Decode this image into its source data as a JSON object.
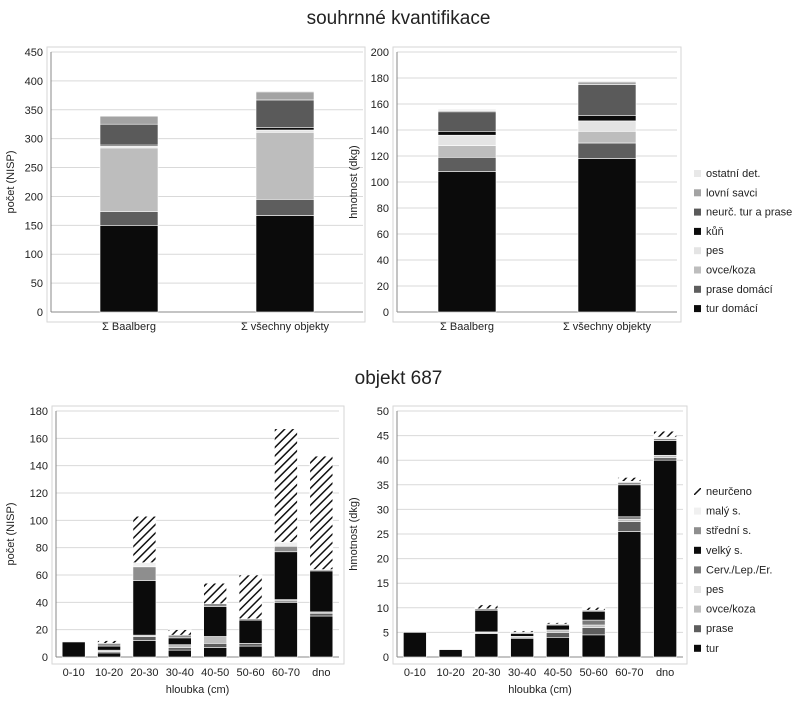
{
  "section_titles": [
    "souhrnné kvantifikace",
    "objekt 687"
  ],
  "fills": {
    "tur": "#0b0b0b",
    "prase": "#5e5e5e",
    "ovce_koza": "#bdbdbd",
    "pes": "#e4e4e4",
    "kun": "#0b0b0b",
    "neurc_tur_prase": "#5a5a5a",
    "lovni": "#a3a3a3",
    "ostatni": "#e8e8e8",
    "cerv": "#7a7a7a",
    "velky": "#0b0b0b",
    "stredni": "#8e8e8e",
    "maly": "#f0f0f0",
    "neurceno": "hatch"
  },
  "chart_data": [
    {
      "type": "bar",
      "stacked": true,
      "title": "",
      "xlabel": "",
      "ylabel": "počet (NISP)",
      "ylim": [
        0,
        450
      ],
      "yticks": [
        0,
        50,
        100,
        150,
        200,
        250,
        300,
        350,
        400,
        450
      ],
      "categories": [
        "Σ Baalberg",
        "Σ všechny objekty"
      ],
      "series": [
        {
          "name": "tur domácí",
          "key": "tur",
          "values": [
            150,
            167
          ]
        },
        {
          "name": "prase domácí",
          "key": "prase",
          "values": [
            24,
            28
          ]
        },
        {
          "name": "ovce/koza",
          "key": "ovce_koza",
          "values": [
            110,
            116
          ]
        },
        {
          "name": "pes",
          "key": "pes",
          "values": [
            3,
            4
          ]
        },
        {
          "name": "kůň",
          "key": "kun",
          "values": [
            2,
            4
          ]
        },
        {
          "name": "neurč. tur a prase",
          "key": "neurc_tur_prase",
          "values": [
            36,
            48
          ]
        },
        {
          "name": "lovní savci",
          "key": "lovni",
          "values": [
            14,
            14
          ]
        },
        {
          "name": "ostatní det.",
          "key": "ostatni",
          "values": [
            1,
            2
          ]
        }
      ]
    },
    {
      "type": "bar",
      "stacked": true,
      "title": "",
      "xlabel": "",
      "ylabel": "hmotnost  (dkg)",
      "ylim": [
        0,
        200
      ],
      "yticks": [
        0,
        20,
        40,
        60,
        80,
        100,
        120,
        140,
        160,
        180,
        200
      ],
      "categories": [
        "Σ Baalberg",
        "Σ všechny objekty"
      ],
      "series": [
        {
          "name": "tur domácí",
          "key": "tur",
          "values": [
            108,
            118
          ]
        },
        {
          "name": "prase domácí",
          "key": "prase",
          "values": [
            11,
            12
          ]
        },
        {
          "name": "ovce/koza",
          "key": "ovce_koza",
          "values": [
            9,
            9
          ]
        },
        {
          "name": "pes",
          "key": "pes",
          "values": [
            8,
            8
          ]
        },
        {
          "name": "kůň",
          "key": "kun",
          "values": [
            3,
            4
          ]
        },
        {
          "name": "neurč. tur a prase",
          "key": "neurc_tur_prase",
          "values": [
            15,
            24
          ]
        },
        {
          "name": "lovní savci",
          "key": "lovni",
          "values": [
            1,
            2
          ]
        },
        {
          "name": "ostatní det.",
          "key": "ostatni",
          "values": [
            1,
            1
          ]
        }
      ],
      "legend": [
        "ostatní det.",
        "lovní savci",
        "neurč. tur a prase",
        "kůň",
        "pes",
        "ovce/koza",
        "prase domácí",
        "tur domácí"
      ]
    },
    {
      "type": "bar",
      "stacked": true,
      "title": "",
      "xlabel": "hloubka  (cm)",
      "ylabel": "počet (NISP)",
      "ylim": [
        0,
        180
      ],
      "yticks": [
        0,
        20,
        40,
        60,
        80,
        100,
        120,
        140,
        160,
        180
      ],
      "categories": [
        "0-10",
        "10-20",
        "20-30",
        "30-40",
        "40-50",
        "50-60",
        "60-70",
        "dno"
      ],
      "series": [
        {
          "name": "tur",
          "key": "tur",
          "values": [
            11,
            3,
            12,
            5,
            7,
            8,
            40,
            30
          ]
        },
        {
          "name": "prase",
          "key": "prase",
          "values": [
            0,
            1,
            3,
            2,
            3,
            2,
            1,
            2
          ]
        },
        {
          "name": "ovce/koza",
          "key": "ovce_koza",
          "values": [
            0,
            1,
            1,
            2,
            5,
            0,
            1,
            1
          ]
        },
        {
          "name": "pes",
          "key": "pes",
          "values": [
            0,
            0,
            0,
            0,
            0,
            0,
            0,
            0
          ]
        },
        {
          "name": "Cerv./Lep./Er.",
          "key": "cerv",
          "values": [
            0,
            0,
            0,
            0,
            0,
            0,
            0,
            0
          ]
        },
        {
          "name": "velký s.",
          "key": "velky",
          "values": [
            0,
            3,
            40,
            5,
            22,
            17,
            35,
            30
          ]
        },
        {
          "name": "střední s.",
          "key": "stredni",
          "values": [
            0,
            2,
            10,
            2,
            2,
            1,
            4,
            1
          ]
        },
        {
          "name": "malý s.",
          "key": "maly",
          "values": [
            0,
            0,
            3,
            0,
            0,
            0,
            3,
            0
          ]
        },
        {
          "name": "neurčeno",
          "key": "neurceno",
          "values": [
            0,
            2,
            34,
            4,
            15,
            32,
            83,
            83
          ]
        }
      ]
    },
    {
      "type": "bar",
      "stacked": true,
      "title": "",
      "xlabel": "hloubka  (cm)",
      "ylabel": "hmotnost  (dkg)",
      "ylim": [
        0,
        50
      ],
      "yticks": [
        0,
        5,
        10,
        15,
        20,
        25,
        30,
        35,
        40,
        45,
        50
      ],
      "categories": [
        "0-10",
        "10-20",
        "20-30",
        "30-40",
        "40-50",
        "50-60",
        "60-70",
        "dno"
      ],
      "series": [
        {
          "name": "tur",
          "key": "tur",
          "values": [
            5,
            1.5,
            4.8,
            3.8,
            4,
            4.5,
            25.5,
            40
          ]
        },
        {
          "name": "prase",
          "key": "prase",
          "values": [
            0,
            0,
            0.1,
            0.2,
            1,
            1.5,
            2,
            0.5
          ]
        },
        {
          "name": "ovce/koza",
          "key": "ovce_koza",
          "values": [
            0,
            0,
            0.2,
            0.2,
            0.5,
            0.5,
            0.5,
            0.5
          ]
        },
        {
          "name": "pes",
          "key": "pes",
          "values": [
            0,
            0,
            0,
            0,
            0,
            0,
            0,
            0
          ]
        },
        {
          "name": "Cerv./Lep./Er.",
          "key": "cerv",
          "values": [
            0,
            0,
            0,
            0,
            0,
            1,
            0.5,
            0
          ]
        },
        {
          "name": "velký s.",
          "key": "velky",
          "values": [
            0,
            0,
            4.4,
            0.6,
            1,
            1.8,
            6.5,
            3
          ]
        },
        {
          "name": "střední s.",
          "key": "stredni",
          "values": [
            0,
            0,
            0.3,
            0.2,
            0.2,
            0.2,
            0.5,
            0.4
          ]
        },
        {
          "name": "malý s.",
          "key": "maly",
          "values": [
            0,
            0,
            0,
            0,
            0,
            0,
            0.2,
            0.3
          ]
        },
        {
          "name": "neurčeno",
          "key": "neurceno",
          "values": [
            0,
            0,
            0.8,
            0.3,
            0.3,
            0.6,
            0.8,
            1.2
          ]
        }
      ],
      "legend": [
        "neurčeno",
        "malý s.",
        "střední s.",
        "velký s.",
        "Cerv./Lep./Er.",
        "pes",
        "ovce/koza",
        "prase",
        "tur"
      ]
    }
  ]
}
